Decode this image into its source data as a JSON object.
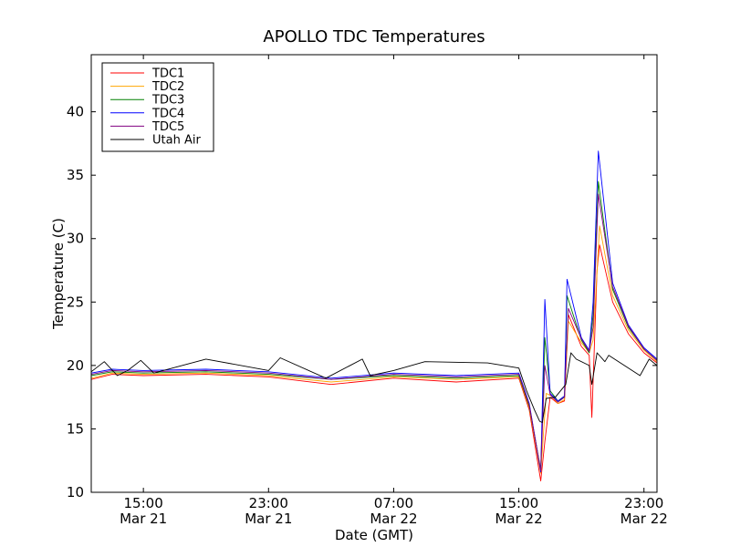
{
  "chart_data": {
    "type": "line",
    "title": "APOLLO TDC Temperatures",
    "xlabel": "Date (GMT)",
    "ylabel": "Temperature (C)",
    "x_start": "Mar 21 11:40",
    "x_end": "Mar 22 23:50",
    "ylim": [
      10,
      44.5
    ],
    "y_ticks": [
      10,
      15,
      20,
      25,
      30,
      35,
      40
    ],
    "x_ticks": [
      {
        "time": "Mar 21 15:00",
        "line1": "15:00",
        "line2": "Mar 21"
      },
      {
        "time": "Mar 21 23:00",
        "line1": "23:00",
        "line2": "Mar 21"
      },
      {
        "time": "Mar 22 07:00",
        "line1": "07:00",
        "line2": "Mar 22"
      },
      {
        "time": "Mar 22 15:00",
        "line1": "15:00",
        "line2": "Mar 22"
      },
      {
        "time": "Mar 22 23:00",
        "line1": "23:00",
        "line2": "Mar 22"
      }
    ],
    "grid": false,
    "legend_position": "top-left",
    "series": [
      {
        "name": "TDC1",
        "color": "#ff0000",
        "points": [
          [
            "Mar 21 11:40",
            18.9
          ],
          [
            "Mar 21 13:00",
            19.3
          ],
          [
            "Mar 21 15:00",
            19.2
          ],
          [
            "Mar 21 19:00",
            19.3
          ],
          [
            "Mar 21 23:00",
            19.1
          ],
          [
            "Mar 22 03:00",
            18.5
          ],
          [
            "Mar 22 07:00",
            19.0
          ],
          [
            "Mar 22 11:00",
            18.7
          ],
          [
            "Mar 22 15:00",
            19.0
          ],
          [
            "Mar 22 15:40",
            16.5
          ],
          [
            "Mar 22 16:24",
            10.9
          ],
          [
            "Mar 22 16:40",
            14.0
          ],
          [
            "Mar 22 17:00",
            17.5
          ],
          [
            "Mar 22 17:30",
            17.0
          ],
          [
            "Mar 22 17:55",
            17.2
          ],
          [
            "Mar 22 18:10",
            24.0
          ],
          [
            "Mar 22 19:00",
            21.5
          ],
          [
            "Mar 22 19:30",
            20.8
          ],
          [
            "Mar 22 19:40",
            15.9
          ],
          [
            "Mar 22 20:00",
            27.5
          ],
          [
            "Mar 22 20:10",
            29.5
          ],
          [
            "Mar 22 21:00",
            25.0
          ],
          [
            "Mar 22 22:00",
            22.5
          ],
          [
            "Mar 22 23:00",
            21.0
          ],
          [
            "Mar 22 23:50",
            20.2
          ]
        ]
      },
      {
        "name": "TDC2",
        "color": "#ffa500",
        "points": [
          [
            "Mar 21 11:40",
            19.0
          ],
          [
            "Mar 21 13:00",
            19.4
          ],
          [
            "Mar 21 15:00",
            19.3
          ],
          [
            "Mar 21 19:00",
            19.4
          ],
          [
            "Mar 21 23:00",
            19.2
          ],
          [
            "Mar 22 03:00",
            18.7
          ],
          [
            "Mar 22 07:00",
            19.1
          ],
          [
            "Mar 22 11:00",
            18.9
          ],
          [
            "Mar 22 15:00",
            19.1
          ],
          [
            "Mar 22 15:40",
            16.7
          ],
          [
            "Mar 22 16:24",
            11.5
          ],
          [
            "Mar 22 16:45",
            17.8
          ],
          [
            "Mar 22 17:05",
            17.6
          ],
          [
            "Mar 22 17:30",
            17.0
          ],
          [
            "Mar 22 17:55",
            17.3
          ],
          [
            "Mar 22 18:10",
            23.5
          ],
          [
            "Mar 22 19:00",
            21.8
          ],
          [
            "Mar 22 19:30",
            21.0
          ],
          [
            "Mar 22 19:45",
            22.0
          ],
          [
            "Mar 22 20:10",
            31.0
          ],
          [
            "Mar 22 21:00",
            25.5
          ],
          [
            "Mar 22 22:00",
            22.8
          ],
          [
            "Mar 22 23:00",
            21.2
          ],
          [
            "Mar 22 23:50",
            20.3
          ]
        ]
      },
      {
        "name": "TDC3",
        "color": "#008000",
        "points": [
          [
            "Mar 21 11:40",
            19.2
          ],
          [
            "Mar 21 13:00",
            19.5
          ],
          [
            "Mar 21 15:00",
            19.4
          ],
          [
            "Mar 21 19:00",
            19.5
          ],
          [
            "Mar 21 23:00",
            19.3
          ],
          [
            "Mar 22 03:00",
            18.9
          ],
          [
            "Mar 22 07:00",
            19.2
          ],
          [
            "Mar 22 11:00",
            19.0
          ],
          [
            "Mar 22 15:00",
            19.2
          ],
          [
            "Mar 22 15:40",
            16.8
          ],
          [
            "Mar 22 16:24",
            11.8
          ],
          [
            "Mar 22 16:40",
            22.2
          ],
          [
            "Mar 22 17:00",
            18.0
          ],
          [
            "Mar 22 17:30",
            17.2
          ],
          [
            "Mar 22 17:55",
            17.5
          ],
          [
            "Mar 22 18:05",
            25.5
          ],
          [
            "Mar 22 19:00",
            22.0
          ],
          [
            "Mar 22 19:30",
            21.0
          ],
          [
            "Mar 22 19:45",
            24.0
          ],
          [
            "Mar 22 20:05",
            34.5
          ],
          [
            "Mar 22 21:00",
            26.0
          ],
          [
            "Mar 22 22:00",
            23.0
          ],
          [
            "Mar 22 23:00",
            21.3
          ],
          [
            "Mar 22 23:50",
            20.4
          ]
        ]
      },
      {
        "name": "TDC4",
        "color": "#0000ff",
        "points": [
          [
            "Mar 21 11:40",
            19.4
          ],
          [
            "Mar 21 13:00",
            19.7
          ],
          [
            "Mar 21 15:00",
            19.6
          ],
          [
            "Mar 21 19:00",
            19.7
          ],
          [
            "Mar 21 23:00",
            19.5
          ],
          [
            "Mar 22 03:00",
            19.0
          ],
          [
            "Mar 22 07:00",
            19.4
          ],
          [
            "Mar 22 11:00",
            19.2
          ],
          [
            "Mar 22 15:00",
            19.4
          ],
          [
            "Mar 22 15:40",
            17.0
          ],
          [
            "Mar 22 16:24",
            11.6
          ],
          [
            "Mar 22 16:40",
            25.2
          ],
          [
            "Mar 22 17:00",
            17.8
          ],
          [
            "Mar 22 17:30",
            17.2
          ],
          [
            "Mar 22 17:55",
            17.6
          ],
          [
            "Mar 22 18:05",
            26.8
          ],
          [
            "Mar 22 19:00",
            22.2
          ],
          [
            "Mar 22 19:30",
            21.2
          ],
          [
            "Mar 22 19:45",
            25.0
          ],
          [
            "Mar 22 20:05",
            36.9
          ],
          [
            "Mar 22 21:00",
            26.5
          ],
          [
            "Mar 22 22:00",
            23.2
          ],
          [
            "Mar 22 23:00",
            21.4
          ],
          [
            "Mar 22 23:50",
            20.5
          ]
        ]
      },
      {
        "name": "TDC5",
        "color": "#800080",
        "points": [
          [
            "Mar 21 11:40",
            19.3
          ],
          [
            "Mar 21 13:00",
            19.6
          ],
          [
            "Mar 21 15:00",
            19.5
          ],
          [
            "Mar 21 19:00",
            19.6
          ],
          [
            "Mar 21 23:00",
            19.4
          ],
          [
            "Mar 22 03:00",
            18.9
          ],
          [
            "Mar 22 07:00",
            19.3
          ],
          [
            "Mar 22 11:00",
            19.1
          ],
          [
            "Mar 22 15:00",
            19.3
          ],
          [
            "Mar 22 15:40",
            16.9
          ],
          [
            "Mar 22 16:24",
            11.7
          ],
          [
            "Mar 22 16:40",
            20.0
          ],
          [
            "Mar 22 17:00",
            17.7
          ],
          [
            "Mar 22 17:30",
            17.1
          ],
          [
            "Mar 22 17:55",
            17.5
          ],
          [
            "Mar 22 18:10",
            24.5
          ],
          [
            "Mar 22 19:00",
            22.1
          ],
          [
            "Mar 22 19:30",
            21.1
          ],
          [
            "Mar 22 19:45",
            23.0
          ],
          [
            "Mar 22 20:05",
            33.5
          ],
          [
            "Mar 22 21:00",
            26.2
          ],
          [
            "Mar 22 22:00",
            23.1
          ],
          [
            "Mar 22 23:00",
            21.3
          ],
          [
            "Mar 22 23:50",
            20.4
          ]
        ]
      },
      {
        "name": "Utah Air",
        "color": "#000000",
        "points": [
          [
            "Mar 21 11:40",
            19.5
          ],
          [
            "Mar 21 12:30",
            20.3
          ],
          [
            "Mar 21 13:20",
            19.2
          ],
          [
            "Mar 21 14:00",
            19.6
          ],
          [
            "Mar 21 14:50",
            20.4
          ],
          [
            "Mar 21 15:40",
            19.4
          ],
          [
            "Mar 21 19:00",
            20.5
          ],
          [
            "Mar 21 23:00",
            19.6
          ],
          [
            "Mar 21 23:45",
            20.6
          ],
          [
            "Mar 22 02:40",
            19.0
          ],
          [
            "Mar 22 05:00",
            20.5
          ],
          [
            "Mar 22 05:30",
            19.2
          ],
          [
            "Mar 22 07:00",
            19.6
          ],
          [
            "Mar 22 09:00",
            20.3
          ],
          [
            "Mar 22 13:00",
            20.2
          ],
          [
            "Mar 22 15:00",
            19.8
          ],
          [
            "Mar 22 15:30",
            18.0
          ],
          [
            "Mar 22 16:00",
            16.5
          ],
          [
            "Mar 22 16:20",
            15.6
          ],
          [
            "Mar 22 16:30",
            15.5
          ],
          [
            "Mar 22 16:45",
            17.4
          ],
          [
            "Mar 22 17:20",
            17.5
          ],
          [
            "Mar 22 18:00",
            18.5
          ],
          [
            "Mar 22 18:20",
            21.0
          ],
          [
            "Mar 22 18:40",
            20.5
          ],
          [
            "Mar 22 19:30",
            20.0
          ],
          [
            "Mar 22 19:40",
            18.5
          ],
          [
            "Mar 22 20:00",
            21.0
          ],
          [
            "Mar 22 20:30",
            20.3
          ],
          [
            "Mar 22 20:45",
            20.8
          ],
          [
            "Mar 22 22:45",
            19.2
          ],
          [
            "Mar 22 23:20",
            20.5
          ],
          [
            "Mar 22 23:50",
            20.0
          ]
        ]
      }
    ]
  }
}
